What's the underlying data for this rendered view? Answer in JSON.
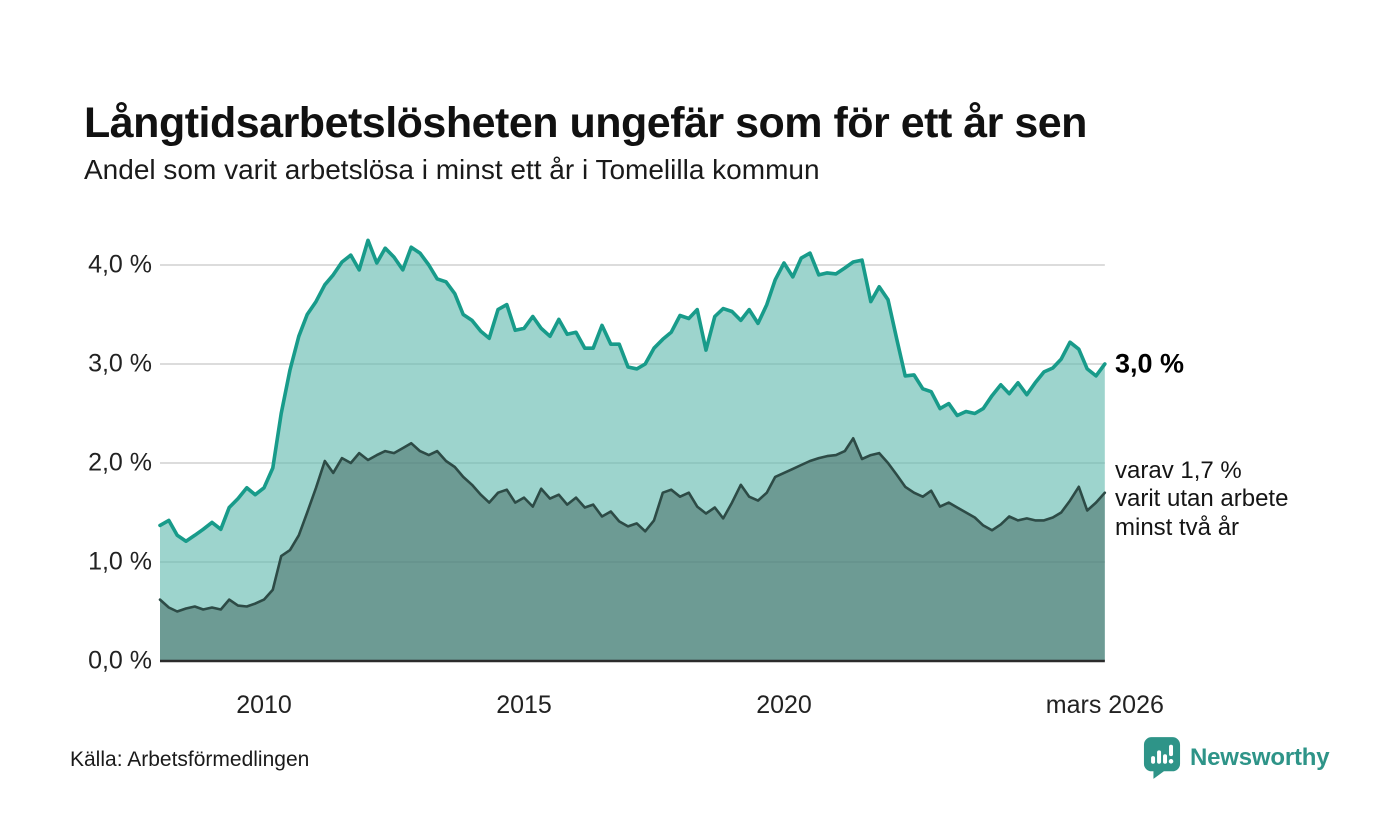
{
  "header": {
    "title": "Långtidsarbetslösheten ungefär som för ett år sen",
    "subtitle": "Andel som varit arbetslösa i minst ett år i Tomelilla kommun"
  },
  "annotations": {
    "latest_total": "3,0 %",
    "secondary_line1": "varav 1,7 %",
    "secondary_line2": "varit utan arbete",
    "secondary_line3": "minst två år"
  },
  "footer": {
    "source": "Källa: Arbetsförmedlingen",
    "brand": "Newsworthy"
  },
  "colors": {
    "accent_teal_line": "#189b8a",
    "dark_line": "#2d4b46",
    "fill_light": "rgba(97,185,175,0.62)",
    "fill_dark": "rgba(62,97,92,0.50)",
    "grid": "#dcdcdc",
    "axis": "#2b2b2b",
    "brand_teal": "#2e9488",
    "text": "#111111"
  },
  "chart_data": {
    "type": "area",
    "title": "Långtidsarbetslösheten ungefär som för ett år sen",
    "subtitle": "Andel som varit arbetslösa i minst ett år i Tomelilla kommun",
    "xlabel": "",
    "ylabel": "",
    "x_unit": "decimal_year",
    "xlim": [
      2008,
      2026.17
    ],
    "ylim": [
      0,
      4.35
    ],
    "grid": true,
    "legend_position": "none",
    "yticks": [
      {
        "value": 0,
        "label": "0,0 %"
      },
      {
        "value": 1,
        "label": "1,0 %"
      },
      {
        "value": 2,
        "label": "2,0 %"
      },
      {
        "value": 3,
        "label": "3,0 %"
      },
      {
        "value": 4,
        "label": "4,0 %"
      }
    ],
    "xticks": [
      {
        "value": 2010,
        "label": "2010"
      },
      {
        "value": 2015,
        "label": "2015"
      },
      {
        "value": 2020,
        "label": "2020"
      },
      {
        "value": 2026.17,
        "label": "mars 2026"
      }
    ],
    "x": [
      2008.0,
      2008.17,
      2008.33,
      2008.5,
      2008.67,
      2008.83,
      2009.0,
      2009.17,
      2009.33,
      2009.5,
      2009.67,
      2009.83,
      2010.0,
      2010.17,
      2010.33,
      2010.5,
      2010.67,
      2010.83,
      2011.0,
      2011.17,
      2011.33,
      2011.5,
      2011.67,
      2011.83,
      2012.0,
      2012.17,
      2012.33,
      2012.5,
      2012.67,
      2012.83,
      2013.0,
      2013.17,
      2013.33,
      2013.5,
      2013.67,
      2013.83,
      2014.0,
      2014.17,
      2014.33,
      2014.5,
      2014.67,
      2014.83,
      2015.0,
      2015.17,
      2015.33,
      2015.5,
      2015.67,
      2015.83,
      2016.0,
      2016.17,
      2016.33,
      2016.5,
      2016.67,
      2016.83,
      2017.0,
      2017.17,
      2017.33,
      2017.5,
      2017.67,
      2017.83,
      2018.0,
      2018.17,
      2018.33,
      2018.5,
      2018.67,
      2018.83,
      2019.0,
      2019.17,
      2019.33,
      2019.5,
      2019.67,
      2019.83,
      2020.0,
      2020.17,
      2020.33,
      2020.5,
      2020.67,
      2020.83,
      2021.0,
      2021.17,
      2021.33,
      2021.5,
      2021.67,
      2021.83,
      2022.0,
      2022.17,
      2022.33,
      2022.5,
      2022.67,
      2022.83,
      2023.0,
      2023.17,
      2023.33,
      2023.5,
      2023.67,
      2023.83,
      2024.0,
      2024.17,
      2024.33,
      2024.5,
      2024.67,
      2024.83,
      2025.0,
      2025.17,
      2025.33,
      2025.5,
      2025.67,
      2025.83,
      2026.0,
      2026.17
    ],
    "series": [
      {
        "name": "Andel arbetslösa minst ett år",
        "end_label": "3,0 %",
        "values": [
          1.37,
          1.42,
          1.27,
          1.21,
          1.27,
          1.33,
          1.4,
          1.33,
          1.55,
          1.64,
          1.75,
          1.68,
          1.75,
          1.95,
          2.5,
          2.94,
          3.28,
          3.5,
          3.63,
          3.8,
          3.9,
          4.03,
          4.1,
          3.95,
          4.25,
          4.02,
          4.17,
          4.08,
          3.95,
          4.18,
          4.12,
          4.0,
          3.86,
          3.83,
          3.71,
          3.5,
          3.44,
          3.33,
          3.26,
          3.55,
          3.6,
          3.34,
          3.36,
          3.48,
          3.36,
          3.28,
          3.45,
          3.3,
          3.32,
          3.16,
          3.16,
          3.39,
          3.2,
          3.2,
          2.97,
          2.95,
          3.0,
          3.16,
          3.25,
          3.32,
          3.49,
          3.46,
          3.55,
          3.14,
          3.48,
          3.56,
          3.53,
          3.44,
          3.55,
          3.41,
          3.6,
          3.85,
          4.02,
          3.88,
          4.07,
          4.12,
          3.9,
          3.92,
          3.91,
          3.97,
          4.03,
          4.05,
          3.63,
          3.78,
          3.65,
          3.25,
          2.88,
          2.89,
          2.75,
          2.72,
          2.55,
          2.6,
          2.48,
          2.52,
          2.5,
          2.55,
          2.68,
          2.79,
          2.7,
          2.81,
          2.69,
          2.81,
          2.92,
          2.96,
          3.05,
          3.22,
          3.15,
          2.95,
          2.88,
          3.0
        ]
      },
      {
        "name": "varav utan arbete minst två år",
        "end_label": "varav 1,7 %",
        "values": [
          0.62,
          0.54,
          0.5,
          0.53,
          0.55,
          0.52,
          0.54,
          0.52,
          0.62,
          0.56,
          0.55,
          0.58,
          0.62,
          0.72,
          1.06,
          1.12,
          1.27,
          1.5,
          1.75,
          2.02,
          1.9,
          2.05,
          2.0,
          2.1,
          2.03,
          2.08,
          2.12,
          2.1,
          2.15,
          2.2,
          2.12,
          2.08,
          2.12,
          2.02,
          1.96,
          1.86,
          1.78,
          1.68,
          1.6,
          1.7,
          1.73,
          1.6,
          1.65,
          1.56,
          1.74,
          1.64,
          1.68,
          1.58,
          1.65,
          1.55,
          1.58,
          1.46,
          1.51,
          1.41,
          1.36,
          1.39,
          1.31,
          1.42,
          1.7,
          1.73,
          1.66,
          1.7,
          1.56,
          1.49,
          1.55,
          1.44,
          1.6,
          1.78,
          1.66,
          1.62,
          1.7,
          1.86,
          1.9,
          1.94,
          1.98,
          2.02,
          2.05,
          2.07,
          2.08,
          2.12,
          2.25,
          2.04,
          2.08,
          2.1,
          2.0,
          1.88,
          1.76,
          1.7,
          1.66,
          1.72,
          1.56,
          1.6,
          1.55,
          1.5,
          1.45,
          1.37,
          1.32,
          1.38,
          1.46,
          1.42,
          1.44,
          1.42,
          1.42,
          1.45,
          1.5,
          1.62,
          1.76,
          1.52,
          1.6,
          1.7
        ]
      }
    ]
  }
}
